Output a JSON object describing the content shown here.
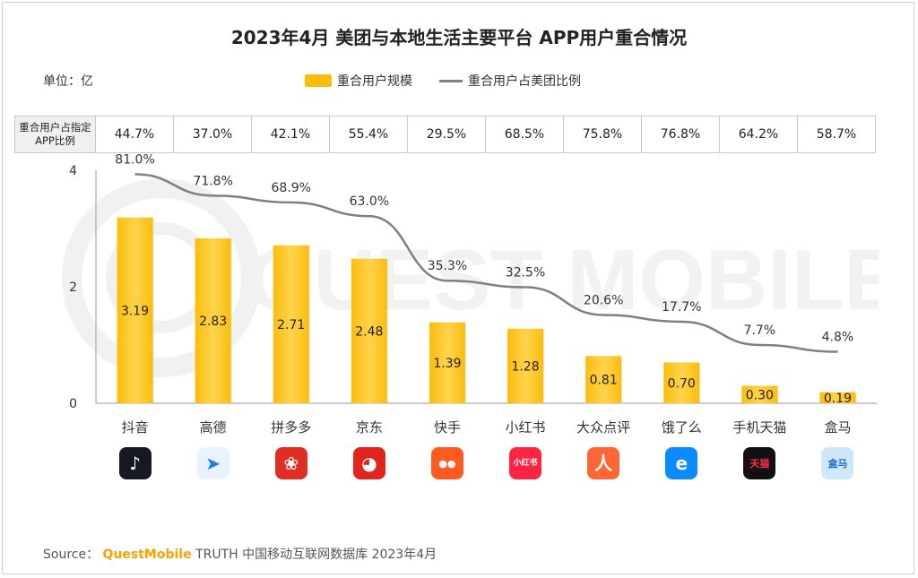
{
  "title": "2023年4月 美团与本地生活主要平台 APP用户重合情况",
  "unit_label": "单位：亿",
  "legend": {
    "bar_label": "重合用户规模",
    "line_label": "重合用户占美团比例"
  },
  "ratio_table": {
    "header": "重合用户占指定APP比例",
    "values": [
      "44.7%",
      "37.0%",
      "42.1%",
      "55.4%",
      "29.5%",
      "68.5%",
      "75.8%",
      "76.8%",
      "64.2%",
      "58.7%"
    ]
  },
  "watermark": "QUEST MOBILE",
  "source": {
    "prefix": "Source：",
    "brand": "QuestMobile",
    "rest": "TRUTH 中国移动互联网数据库 2023年4月"
  },
  "apps": [
    {
      "name": "抖音",
      "icon": "douyin-icon",
      "icon_text": "♪",
      "bg": "#161823",
      "fg": "#ffffff"
    },
    {
      "name": "高德",
      "icon": "amap-icon",
      "icon_text": "➤",
      "bg": "#e8f3ff",
      "fg": "#1e7bf0"
    },
    {
      "name": "拼多多",
      "icon": "pinduoduo-icon",
      "icon_text": "❀",
      "bg": "#e02e24",
      "fg": "#ffffff"
    },
    {
      "name": "京东",
      "icon": "jd-icon",
      "icon_text": "◕",
      "bg": "#e1251b",
      "fg": "#ffffff"
    },
    {
      "name": "快手",
      "icon": "kuaishou-icon",
      "icon_text": "●●",
      "bg": "#ff5a1f",
      "fg": "#ffffff"
    },
    {
      "name": "小红书",
      "icon": "xiaohongshu-icon",
      "icon_text": "小红书",
      "bg": "#ff2442",
      "fg": "#ffffff"
    },
    {
      "name": "大众点评",
      "icon": "dianping-icon",
      "icon_text": "人",
      "bg": "#ff6633",
      "fg": "#ffffff"
    },
    {
      "name": "饿了么",
      "icon": "eleme-icon",
      "icon_text": "e",
      "bg": "#0a8cff",
      "fg": "#ffffff"
    },
    {
      "name": "手机天猫",
      "icon": "tmall-icon",
      "icon_text": "天猫",
      "bg": "#111111",
      "fg": "#ff2d4b"
    },
    {
      "name": "盒马",
      "icon": "hema-icon",
      "icon_text": "盒马",
      "bg": "#cfe7fb",
      "fg": "#1f6fd0"
    }
  ],
  "colors": {
    "bar": "#fbbd0b",
    "bar_light": "#ffd34d",
    "line": "#808080",
    "axis": "#9a9a9a"
  },
  "chart_data": {
    "type": "bar",
    "title": "2023年4月 美团与本地生活主要平台 APP用户重合情况",
    "categories": [
      "抖音",
      "高德",
      "拼多多",
      "京东",
      "快手",
      "小红书",
      "大众点评",
      "饿了么",
      "手机天猫",
      "盒马"
    ],
    "series": [
      {
        "name": "重合用户规模",
        "type": "bar",
        "values": [
          3.19,
          2.83,
          2.71,
          2.48,
          1.39,
          1.28,
          0.81,
          0.7,
          0.3,
          0.19
        ],
        "labels": [
          "3.19",
          "2.83",
          "2.71",
          "2.48",
          "1.39",
          "1.28",
          "0.81",
          "0.70",
          "0.30",
          "0.19"
        ]
      },
      {
        "name": "重合用户占美团比例",
        "type": "line",
        "values": [
          81.0,
          71.8,
          68.9,
          63.0,
          35.3,
          32.5,
          20.6,
          17.7,
          7.7,
          4.8
        ],
        "labels": [
          "81.0%",
          "71.8%",
          "68.9%",
          "63.0%",
          "35.3%",
          "32.5%",
          "20.6%",
          "17.7%",
          "7.7%",
          "4.8%"
        ]
      }
    ],
    "yticks": [
      "0",
      "2",
      "4"
    ],
    "ylim": [
      0,
      4
    ],
    "legend_position": "top",
    "grid": false
  }
}
